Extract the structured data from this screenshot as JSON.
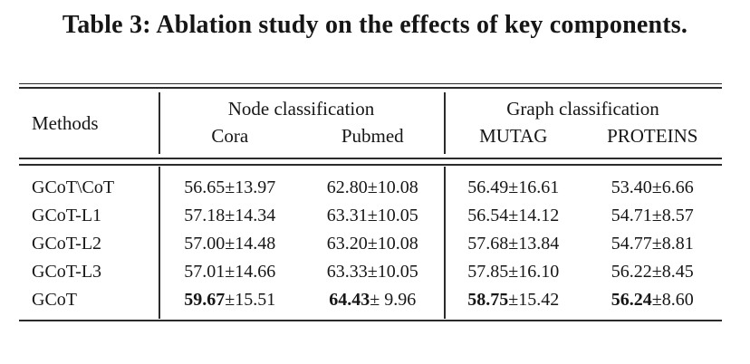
{
  "caption": "Table 3: Ablation study on the effects of key components.",
  "table": {
    "header": {
      "methods_label": "Methods",
      "groups": [
        {
          "label": "Node classification",
          "columns": [
            "Cora",
            "Pubmed"
          ]
        },
        {
          "label": "Graph classification",
          "columns": [
            "MUTAG",
            "PROTEINS"
          ]
        }
      ]
    },
    "rows": [
      {
        "method": "GCoT\\CoT",
        "cells": [
          {
            "mean": "56.65",
            "std": "±13.97",
            "bold": false
          },
          {
            "mean": "62.80",
            "std": "±10.08",
            "bold": false
          },
          {
            "mean": "56.49",
            "std": "±16.61",
            "bold": false
          },
          {
            "mean": "53.40",
            "std": "±6.66",
            "bold": false
          }
        ]
      },
      {
        "method": "GCoT-L1",
        "cells": [
          {
            "mean": "57.18",
            "std": "±14.34",
            "bold": false
          },
          {
            "mean": "63.31",
            "std": "±10.05",
            "bold": false
          },
          {
            "mean": "56.54",
            "std": "±14.12",
            "bold": false
          },
          {
            "mean": "54.71",
            "std": "±8.57",
            "bold": false
          }
        ]
      },
      {
        "method": "GCoT-L2",
        "cells": [
          {
            "mean": "57.00",
            "std": "±14.48",
            "bold": false
          },
          {
            "mean": "63.20",
            "std": "±10.08",
            "bold": false
          },
          {
            "mean": "57.68",
            "std": "±13.84",
            "bold": false
          },
          {
            "mean": "54.77",
            "std": "±8.81",
            "bold": false
          }
        ]
      },
      {
        "method": "GCoT-L3",
        "cells": [
          {
            "mean": "57.01",
            "std": "±14.66",
            "bold": false
          },
          {
            "mean": "63.33",
            "std": "±10.05",
            "bold": false
          },
          {
            "mean": "57.85",
            "std": "±16.10",
            "bold": false
          },
          {
            "mean": "56.22",
            "std": "±8.45",
            "bold": false
          }
        ]
      },
      {
        "method": "GCoT",
        "cells": [
          {
            "mean": "59.67",
            "std": "±15.51",
            "bold": true
          },
          {
            "mean": "64.43",
            "std": "± 9.96",
            "bold": true
          },
          {
            "mean": "58.75",
            "std": "±15.42",
            "bold": true
          },
          {
            "mean": "56.24",
            "std": "±8.60",
            "bold": true
          }
        ]
      }
    ]
  },
  "chart_data": {
    "type": "table",
    "title": "Table 3: Ablation study on the effects of key components.",
    "column_groups": [
      "Node classification",
      "Node classification",
      "Graph classification",
      "Graph classification"
    ],
    "columns": [
      "Methods",
      "Cora",
      "Pubmed",
      "MUTAG",
      "PROTEINS"
    ],
    "rows": [
      [
        "GCoT\\CoT",
        "56.65±13.97",
        "62.80±10.08",
        "56.49±16.61",
        "53.40±6.66"
      ],
      [
        "GCoT-L1",
        "57.18±14.34",
        "63.31±10.05",
        "56.54±14.12",
        "54.71±8.57"
      ],
      [
        "GCoT-L2",
        "57.00±14.48",
        "63.20±10.08",
        "57.68±13.84",
        "54.77±8.81"
      ],
      [
        "GCoT-L3",
        "57.01±14.66",
        "63.33±10.05",
        "57.85±16.10",
        "56.22±8.45"
      ],
      [
        "GCoT",
        "59.67±15.51",
        "64.43± 9.96",
        "58.75±15.42",
        "56.24±8.60"
      ]
    ],
    "bold_row": "GCoT"
  }
}
